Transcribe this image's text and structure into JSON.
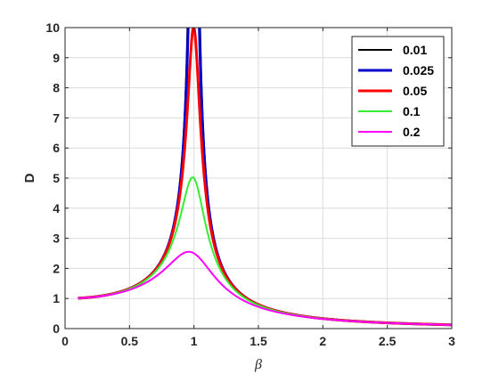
{
  "chart_data": {
    "type": "line",
    "xlabel": "β",
    "ylabel": "D",
    "xlim": [
      0,
      3
    ],
    "ylim": [
      0,
      10
    ],
    "xticks": [
      0,
      0.5,
      1,
      1.5,
      2,
      2.5,
      3
    ],
    "xtick_labels": [
      "0",
      "0.5",
      "1",
      "1.5",
      "2",
      "2.5",
      "3"
    ],
    "yticks": [
      0,
      1,
      2,
      3,
      4,
      5,
      6,
      7,
      8,
      9,
      10
    ],
    "ytick_labels": [
      "0",
      "1",
      "2",
      "3",
      "4",
      "5",
      "6",
      "7",
      "8",
      "9",
      "10"
    ],
    "grid": true,
    "legend_position": "top-right",
    "x_range": [
      0.1,
      3
    ],
    "series": [
      {
        "name": "0.01",
        "zeta": 0.01,
        "color": "#000000",
        "width": 2
      },
      {
        "name": "0.025",
        "zeta": 0.025,
        "color": "#0000cc",
        "width": 3
      },
      {
        "name": "0.05",
        "zeta": 0.05,
        "color": "#ff0000",
        "width": 3
      },
      {
        "name": "0.1",
        "zeta": 0.1,
        "color": "#33ee33",
        "width": 2
      },
      {
        "name": "0.2",
        "zeta": 0.2,
        "color": "#ff00ff",
        "width": 2
      }
    ]
  }
}
